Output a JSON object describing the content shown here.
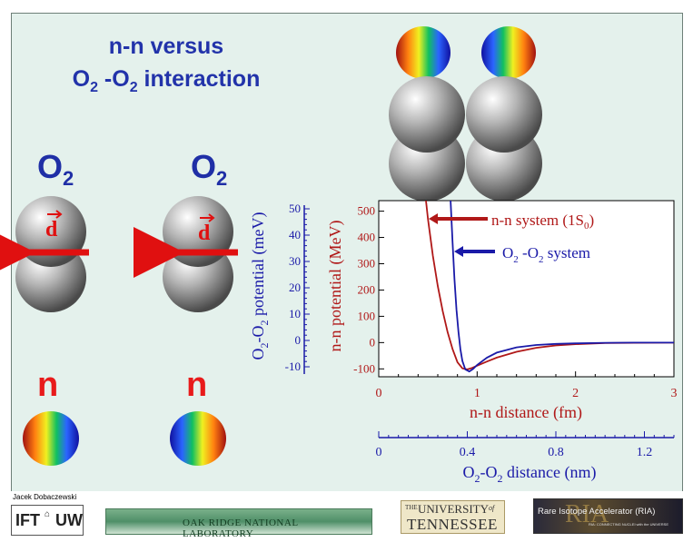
{
  "title": {
    "line1": "n-n versus",
    "line2_main": "O",
    "line2_sub1": "2",
    "line2_mid": " -O",
    "line2_sub2": "2",
    "line2_end": " interaction"
  },
  "labels": {
    "o2_left": "O",
    "o2_left_sub": "2",
    "o2_right": "O",
    "o2_right_sub": "2",
    "n_left": "n",
    "n_right": "n",
    "dipole_left": "d",
    "dipole_right": "d"
  },
  "colors": {
    "nn": "#b01818",
    "o2": "#1a1aa8",
    "slide_bg": "#e4f1ec",
    "title": "#2233aa",
    "big_label": "#e81b1b",
    "arrow": "#e01010"
  },
  "chart_data": {
    "type": "line",
    "xlabel": "n-n distance (fm)",
    "x2label": "O2-O2 distance (nm)",
    "ylabel_left": "O2-O2 potential (meV)",
    "ylabel_right": "n-n potential (MeV)",
    "xlim": [
      0,
      3
    ],
    "ylim": [
      -130,
      540
    ],
    "x_ticks": [
      0,
      1,
      2,
      3
    ],
    "x2_ticks": [
      "0",
      "0.4",
      "0.8",
      "1.2"
    ],
    "x2_tick_pos_fm": [
      0,
      0.9,
      1.8,
      2.7
    ],
    "yticks_right": [
      -100,
      0,
      100,
      200,
      300,
      400,
      500
    ],
    "yticks_left": [
      -10,
      0,
      10,
      20,
      30,
      40,
      50
    ],
    "legend": [
      {
        "name": "n-n system (1S",
        "sub": "0",
        "tail": ")"
      },
      {
        "name": "O",
        "sub1": "2",
        "mid": " -O",
        "sub2": "2",
        "tail": "  system"
      }
    ],
    "series": [
      {
        "name": "n-n system (1S0)",
        "x": [
          0.48,
          0.5,
          0.55,
          0.6,
          0.65,
          0.7,
          0.75,
          0.8,
          0.85,
          0.9,
          0.95,
          1.0,
          1.1,
          1.2,
          1.4,
          1.6,
          1.8,
          2.0,
          2.3,
          2.6,
          3.0
        ],
        "y": [
          540,
          470,
          330,
          215,
          120,
          40,
          -25,
          -75,
          -98,
          -102,
          -96,
          -88,
          -72,
          -57,
          -35,
          -20,
          -11,
          -6,
          -2,
          -1,
          0
        ]
      },
      {
        "name": "O2-O2 system",
        "x": [
          0.73,
          0.75,
          0.77,
          0.79,
          0.81,
          0.83,
          0.85,
          0.88,
          0.92,
          0.96,
          1.0,
          1.1,
          1.2,
          1.4,
          1.6,
          1.8,
          2.0,
          2.3,
          2.6,
          3.0
        ],
        "y": [
          540,
          380,
          240,
          125,
          40,
          -25,
          -70,
          -102,
          -110,
          -100,
          -85,
          -57,
          -38,
          -18,
          -9,
          -5,
          -3,
          -1,
          0,
          0
        ]
      }
    ]
  },
  "footer": {
    "author": "Jacek Dobaczewski",
    "ift_logo": "IFT",
    "uw_logo": "UW",
    "ornl": "OAK RIDGE NATIONAL LABORATORY",
    "ut_small": "THE",
    "ut_big": "UNIVERSITY",
    "ut_of": "of",
    "ut_state": "TENNESSEE",
    "ria": "Rare Isotope Accelerator (RIA)",
    "ria_sub": "RIA: CONNECTING NUCLEI with the UNIVERSE",
    "ria_mark": "RIA"
  }
}
